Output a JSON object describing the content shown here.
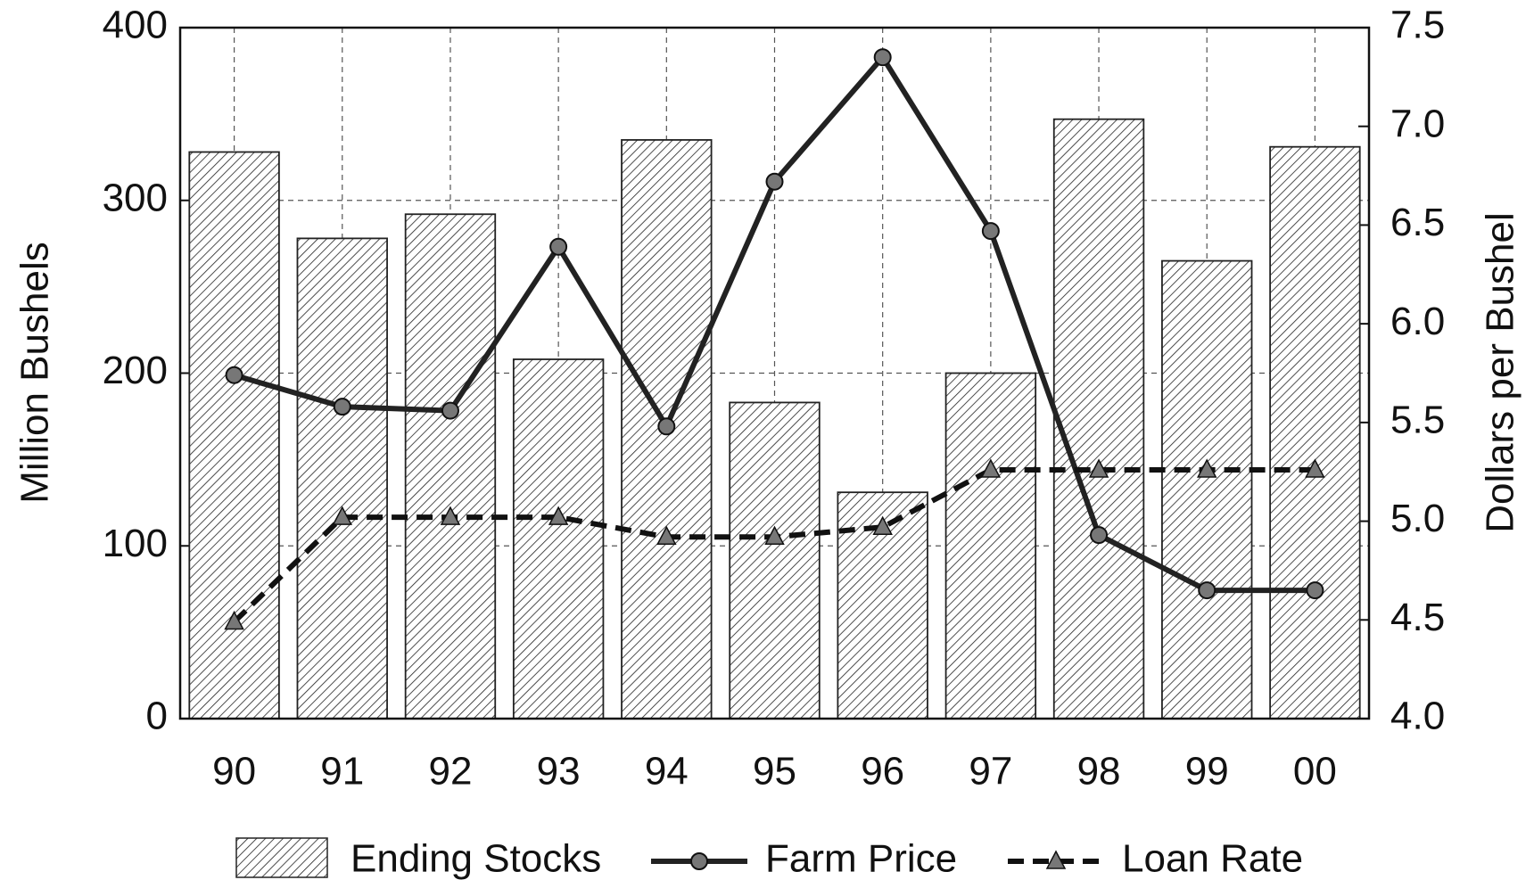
{
  "chart_data": {
    "type": "bar",
    "y_label": "Million Bushels",
    "y2_label": "Dollars per Bushel",
    "categories": [
      "90",
      "91",
      "92",
      "93",
      "94",
      "95",
      "96",
      "97",
      "98",
      "99",
      "00"
    ],
    "series": [
      {
        "name": "Ending Stocks",
        "type": "bar",
        "color": "#ffffff",
        "hatch": "#222222",
        "values": [
          328,
          278,
          292,
          208,
          335,
          183,
          131,
          200,
          347,
          265,
          331
        ]
      },
      {
        "name": "Farm Price",
        "type": "line",
        "axis": "y2",
        "color": "#222222",
        "marker": "circle",
        "dashed": false,
        "values": [
          5.74,
          5.58,
          5.56,
          6.39,
          5.48,
          6.72,
          7.35,
          6.47,
          4.93,
          4.65,
          4.65
        ]
      },
      {
        "name": "Loan Rate",
        "type": "line",
        "axis": "y2",
        "color": "#111111",
        "marker": "triangle",
        "dashed": true,
        "values": [
          4.49,
          5.02,
          5.02,
          5.02,
          4.92,
          4.92,
          4.97,
          5.26,
          5.26,
          5.26,
          5.26
        ]
      }
    ],
    "ylim": [
      0,
      400
    ],
    "yticks": [
      0,
      100,
      200,
      300,
      400
    ],
    "y2lim": [
      4.0,
      7.5
    ],
    "y2ticks": [
      {
        "value": 4.0,
        "label": "4.0"
      },
      4.5,
      {
        "value": 5.0,
        "label": "5.0"
      },
      5.5,
      {
        "value": 6.0,
        "label": "6.0"
      },
      6.5,
      {
        "value": 7.0,
        "label": "7.0"
      },
      7.5
    ],
    "grid": true
  }
}
